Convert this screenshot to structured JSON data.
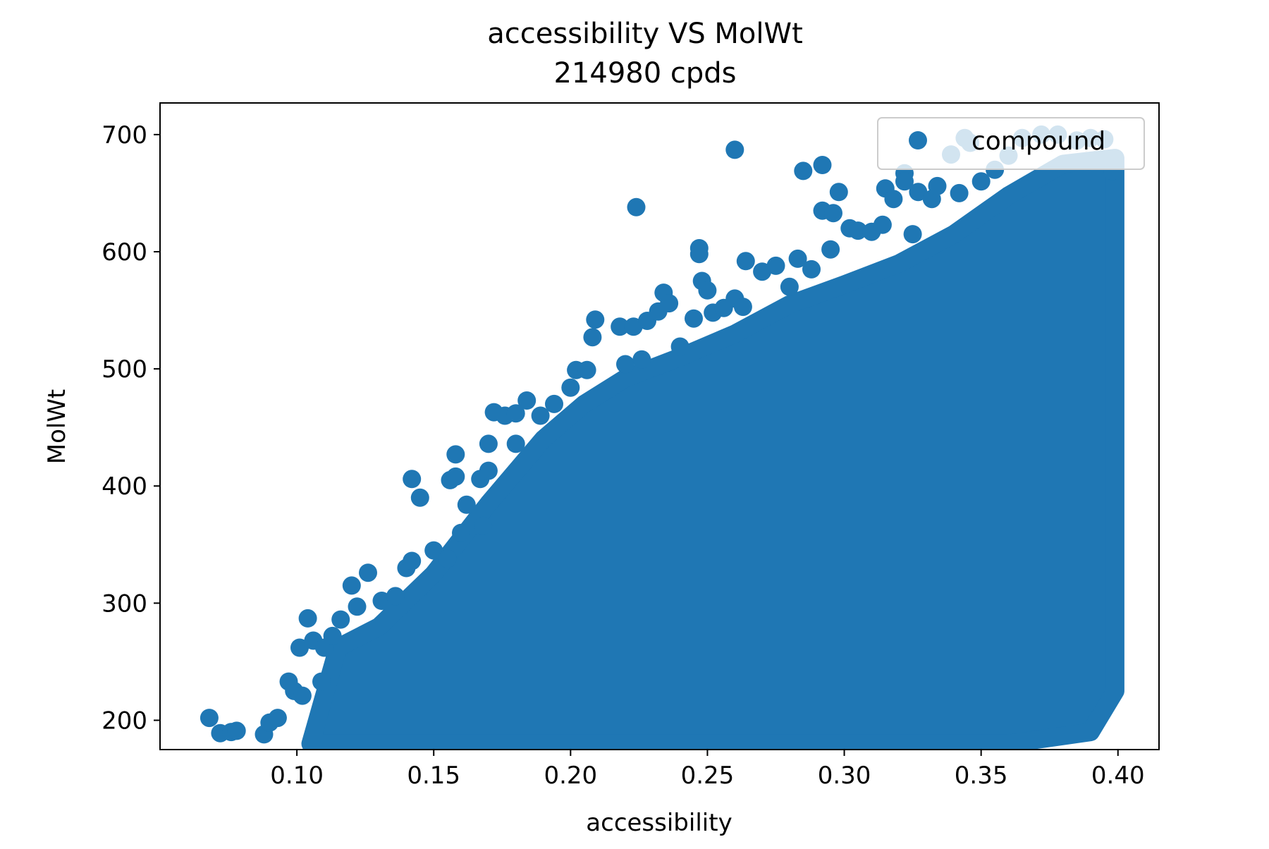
{
  "chart_data": {
    "type": "scatter",
    "title": "accessibility VS MolWt",
    "subtitle": "214980 cpds",
    "xlabel": "accessibility",
    "ylabel": "MolWt",
    "xlim": [
      0.05,
      0.415
    ],
    "ylim": [
      175,
      727
    ],
    "x_ticks": [
      0.1,
      0.15,
      0.2,
      0.25,
      0.3,
      0.35,
      0.4
    ],
    "x_tick_labels": [
      "0.10",
      "0.15",
      "0.20",
      "0.25",
      "0.30",
      "0.35",
      "0.40"
    ],
    "y_ticks": [
      200,
      300,
      400,
      500,
      600,
      700
    ],
    "y_tick_labels": [
      "200",
      "300",
      "400",
      "500",
      "600",
      "700"
    ],
    "grid": false,
    "legend": {
      "position": "top-right",
      "label": "compound"
    },
    "color": "#1f77b4",
    "series": [
      {
        "name": "compound",
        "points": [
          [
            0.068,
            202
          ],
          [
            0.072,
            189
          ],
          [
            0.076,
            190
          ],
          [
            0.078,
            191
          ],
          [
            0.088,
            188
          ],
          [
            0.09,
            198
          ],
          [
            0.093,
            202
          ],
          [
            0.097,
            233
          ],
          [
            0.099,
            225
          ],
          [
            0.101,
            262
          ],
          [
            0.102,
            221
          ],
          [
            0.104,
            287
          ],
          [
            0.106,
            268
          ],
          [
            0.109,
            233
          ],
          [
            0.11,
            262
          ],
          [
            0.113,
            272
          ],
          [
            0.116,
            286
          ],
          [
            0.12,
            315
          ],
          [
            0.122,
            297
          ],
          [
            0.126,
            326
          ],
          [
            0.131,
            302
          ],
          [
            0.136,
            306
          ],
          [
            0.14,
            330
          ],
          [
            0.142,
            336
          ],
          [
            0.142,
            406
          ],
          [
            0.145,
            390
          ],
          [
            0.15,
            345
          ],
          [
            0.155,
            338
          ],
          [
            0.156,
            405
          ],
          [
            0.158,
            408
          ],
          [
            0.158,
            427
          ],
          [
            0.16,
            360
          ],
          [
            0.162,
            384
          ],
          [
            0.167,
            406
          ],
          [
            0.168,
            366
          ],
          [
            0.17,
            413
          ],
          [
            0.17,
            436
          ],
          [
            0.172,
            463
          ],
          [
            0.176,
            460
          ],
          [
            0.18,
            462
          ],
          [
            0.18,
            436
          ],
          [
            0.184,
            473
          ],
          [
            0.189,
            460
          ],
          [
            0.194,
            470
          ],
          [
            0.2,
            484
          ],
          [
            0.202,
            499
          ],
          [
            0.206,
            499
          ],
          [
            0.208,
            527
          ],
          [
            0.209,
            542
          ],
          [
            0.218,
            536
          ],
          [
            0.22,
            504
          ],
          [
            0.223,
            536
          ],
          [
            0.224,
            638
          ],
          [
            0.226,
            508
          ],
          [
            0.228,
            541
          ],
          [
            0.232,
            549
          ],
          [
            0.234,
            565
          ],
          [
            0.236,
            556
          ],
          [
            0.24,
            519
          ],
          [
            0.245,
            543
          ],
          [
            0.247,
            603
          ],
          [
            0.247,
            598
          ],
          [
            0.248,
            575
          ],
          [
            0.25,
            567
          ],
          [
            0.252,
            548
          ],
          [
            0.256,
            552
          ],
          [
            0.26,
            560
          ],
          [
            0.26,
            687
          ],
          [
            0.263,
            553
          ],
          [
            0.264,
            592
          ],
          [
            0.27,
            583
          ],
          [
            0.275,
            588
          ],
          [
            0.28,
            570
          ],
          [
            0.283,
            594
          ],
          [
            0.285,
            669
          ],
          [
            0.288,
            585
          ],
          [
            0.292,
            674
          ],
          [
            0.292,
            635
          ],
          [
            0.295,
            602
          ],
          [
            0.296,
            633
          ],
          [
            0.298,
            651
          ],
          [
            0.302,
            620
          ],
          [
            0.305,
            618
          ],
          [
            0.31,
            617
          ],
          [
            0.314,
            623
          ],
          [
            0.315,
            654
          ],
          [
            0.318,
            645
          ],
          [
            0.322,
            667
          ],
          [
            0.322,
            660
          ],
          [
            0.325,
            615
          ],
          [
            0.327,
            651
          ],
          [
            0.332,
            645
          ],
          [
            0.334,
            656
          ],
          [
            0.339,
            683
          ],
          [
            0.342,
            650
          ],
          [
            0.344,
            697
          ],
          [
            0.346,
            693
          ],
          [
            0.35,
            660
          ],
          [
            0.355,
            670
          ],
          [
            0.36,
            682
          ],
          [
            0.365,
            697
          ],
          [
            0.372,
            700
          ],
          [
            0.378,
            700
          ],
          [
            0.385,
            695
          ],
          [
            0.39,
            697
          ],
          [
            0.395,
            696
          ],
          [
            0.398,
            669
          ]
        ]
      }
    ]
  }
}
